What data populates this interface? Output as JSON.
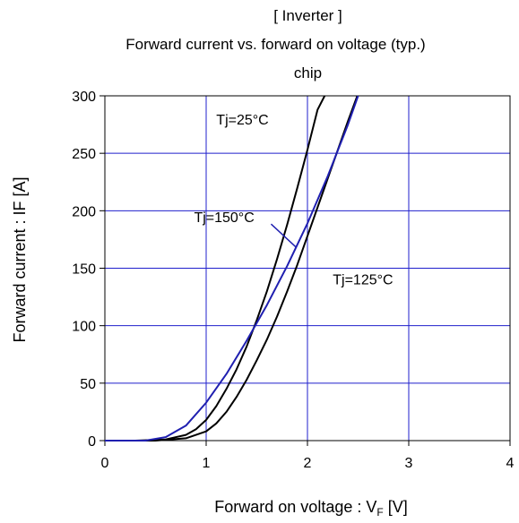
{
  "title": {
    "line1": "[ Inverter ]",
    "line2": "Forward current  vs.  forward on voltage  (typ.)",
    "line3": "chip"
  },
  "axes": {
    "xlabel_main": "Forward on voltage : V",
    "xlabel_sub": "F",
    "xlabel_unit": " [V]",
    "ylabel": "Forward current : IF [A]"
  },
  "colors": {
    "grid": "#1f1fcc",
    "tj25": "#000000",
    "tj125": "#000000",
    "tj150": "#1f1fb0"
  },
  "chart_data": {
    "type": "line",
    "title": "[ Inverter ] Forward current vs. forward on voltage (typ.) chip",
    "xlabel": "Forward on voltage : VF [V]",
    "ylabel": "Forward current : IF [A]",
    "xlim": [
      0,
      4
    ],
    "ylim": [
      0,
      300
    ],
    "xticks": [
      0,
      1,
      2,
      3,
      4
    ],
    "yticks": [
      0,
      50,
      100,
      150,
      200,
      250,
      300
    ],
    "grid": true,
    "series": [
      {
        "name": "Tj=25°C",
        "x": [
          0.0,
          0.3,
          0.6,
          0.8,
          0.9,
          1.0,
          1.1,
          1.2,
          1.3,
          1.4,
          1.5,
          1.6,
          1.7,
          1.8,
          1.9,
          2.0,
          2.1,
          2.17
        ],
        "y": [
          0,
          0,
          1,
          5,
          10,
          18,
          30,
          45,
          62,
          82,
          105,
          130,
          158,
          188,
          220,
          253,
          288,
          300
        ]
      },
      {
        "name": "Tj=125°C",
        "x": [
          0.0,
          0.5,
          0.8,
          1.0,
          1.1,
          1.2,
          1.3,
          1.4,
          1.5,
          1.6,
          1.7,
          1.8,
          1.9,
          2.0,
          2.1,
          2.2,
          2.3,
          2.4,
          2.5
        ],
        "y": [
          0,
          0,
          2,
          8,
          15,
          25,
          38,
          53,
          70,
          88,
          108,
          130,
          153,
          178,
          203,
          228,
          253,
          278,
          302
        ]
      },
      {
        "name": "Tj=150°C",
        "x": [
          0.0,
          0.4,
          0.6,
          0.8,
          1.0,
          1.2,
          1.4,
          1.6,
          1.8,
          2.0,
          2.2,
          2.4,
          2.5
        ],
        "y": [
          0,
          0,
          3,
          13,
          33,
          58,
          87,
          118,
          152,
          189,
          230,
          275,
          300
        ]
      }
    ],
    "annotations": [
      {
        "text": "Tj=25°C",
        "x": 1.1,
        "y": 275
      },
      {
        "text": "Tj=150°C",
        "x": 0.88,
        "y": 190
      },
      {
        "text": "Tj=125°C",
        "x": 2.25,
        "y": 136
      }
    ]
  }
}
